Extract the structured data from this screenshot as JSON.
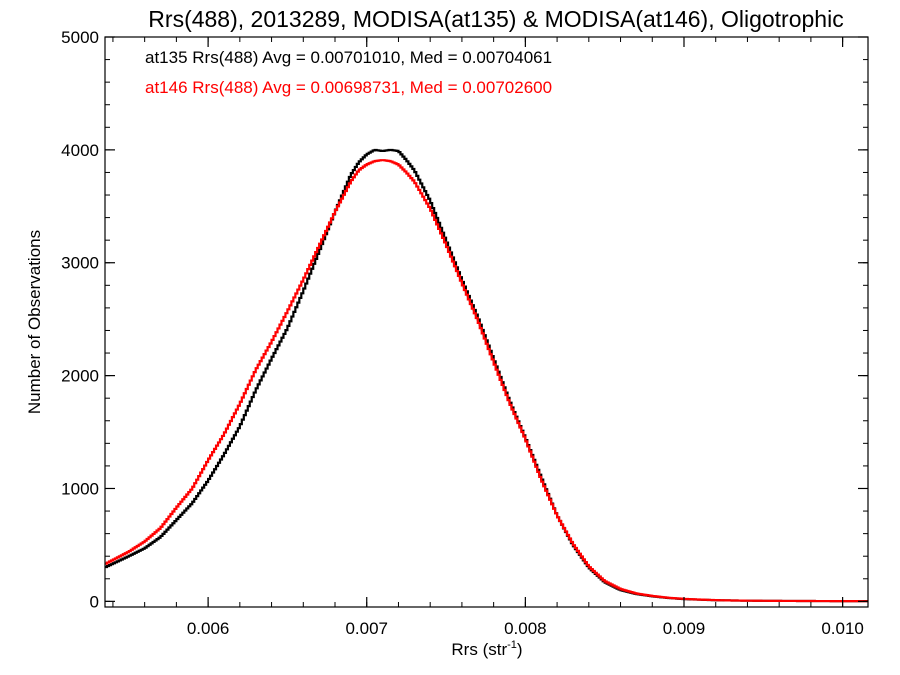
{
  "chart_data": {
    "type": "line",
    "step": true,
    "title": "Rrs(488), 2013289, MODISA(at135) & MODISA(at146), Oligotrophic",
    "xlabel_main": "Rrs (str",
    "xlabel_sup": "-1",
    "xlabel_end": ")",
    "ylabel": "Number of Observations",
    "xlim": [
      0.00535,
      0.01016
    ],
    "ylim": [
      -50,
      5000
    ],
    "x_ticks": [
      0.006,
      0.007,
      0.008,
      0.009,
      0.01
    ],
    "x_tick_labels": [
      "0.006",
      "0.007",
      "0.008",
      "0.009",
      "0.010"
    ],
    "y_ticks": [
      0,
      1000,
      2000,
      3000,
      4000,
      5000
    ],
    "y_tick_labels": [
      "0",
      "1000",
      "2000",
      "3000",
      "4000",
      "5000"
    ],
    "grid": false,
    "annotations": [
      {
        "text": "at135 Rrs(488) Avg = 0.00701010, Med = 0.00704061",
        "color": "#000000"
      },
      {
        "text": "at146 Rrs(488) Avg = 0.00698731, Med = 0.00702600",
        "color": "#ff0000"
      }
    ],
    "series": [
      {
        "name": "at135",
        "color": "#000000",
        "x": [
          0.00535,
          0.0055,
          0.0056,
          0.0057,
          0.0058,
          0.0059,
          0.006,
          0.0061,
          0.0062,
          0.0063,
          0.0064,
          0.0065,
          0.0066,
          0.0067,
          0.0068,
          0.0069,
          0.00695,
          0.007,
          0.00705,
          0.0071,
          0.00715,
          0.0072,
          0.00725,
          0.0073,
          0.0074,
          0.0075,
          0.0076,
          0.0077,
          0.0078,
          0.0079,
          0.008,
          0.0081,
          0.0082,
          0.0083,
          0.0084,
          0.0085,
          0.0086,
          0.0087,
          0.0088,
          0.0089,
          0.009,
          0.0091,
          0.0092,
          0.0093,
          0.0094,
          0.0096,
          0.0098,
          0.01,
          0.01016
        ],
        "y": [
          300,
          400,
          470,
          570,
          720,
          870,
          1070,
          1300,
          1550,
          1870,
          2150,
          2420,
          2750,
          3100,
          3450,
          3780,
          3890,
          3960,
          4000,
          3990,
          4000,
          3990,
          3910,
          3820,
          3550,
          3200,
          2850,
          2520,
          2150,
          1780,
          1450,
          1100,
          760,
          500,
          300,
          170,
          100,
          65,
          45,
          30,
          20,
          15,
          10,
          8,
          6,
          4,
          3,
          2,
          2
        ]
      },
      {
        "name": "at146",
        "color": "#ff0000",
        "x": [
          0.00535,
          0.0055,
          0.0056,
          0.0057,
          0.0058,
          0.0059,
          0.006,
          0.0061,
          0.0062,
          0.0063,
          0.0064,
          0.0065,
          0.0066,
          0.0067,
          0.0068,
          0.0069,
          0.00695,
          0.007,
          0.00705,
          0.0071,
          0.00715,
          0.0072,
          0.00725,
          0.0073,
          0.0074,
          0.0075,
          0.0076,
          0.0077,
          0.0078,
          0.0079,
          0.008,
          0.0081,
          0.0082,
          0.0083,
          0.0084,
          0.0085,
          0.0086,
          0.0087,
          0.0088,
          0.0089,
          0.009,
          0.0091,
          0.0092,
          0.0093,
          0.0094,
          0.0096,
          0.0098,
          0.01,
          0.01016
        ],
        "y": [
          330,
          440,
          530,
          650,
          830,
          1000,
          1250,
          1480,
          1750,
          2050,
          2300,
          2570,
          2850,
          3150,
          3450,
          3720,
          3820,
          3870,
          3900,
          3910,
          3900,
          3870,
          3800,
          3720,
          3480,
          3160,
          2820,
          2490,
          2120,
          1760,
          1440,
          1080,
          760,
          510,
          310,
          180,
          110,
          70,
          48,
          32,
          22,
          16,
          11,
          8,
          6,
          4,
          3,
          2,
          2
        ]
      }
    ]
  }
}
